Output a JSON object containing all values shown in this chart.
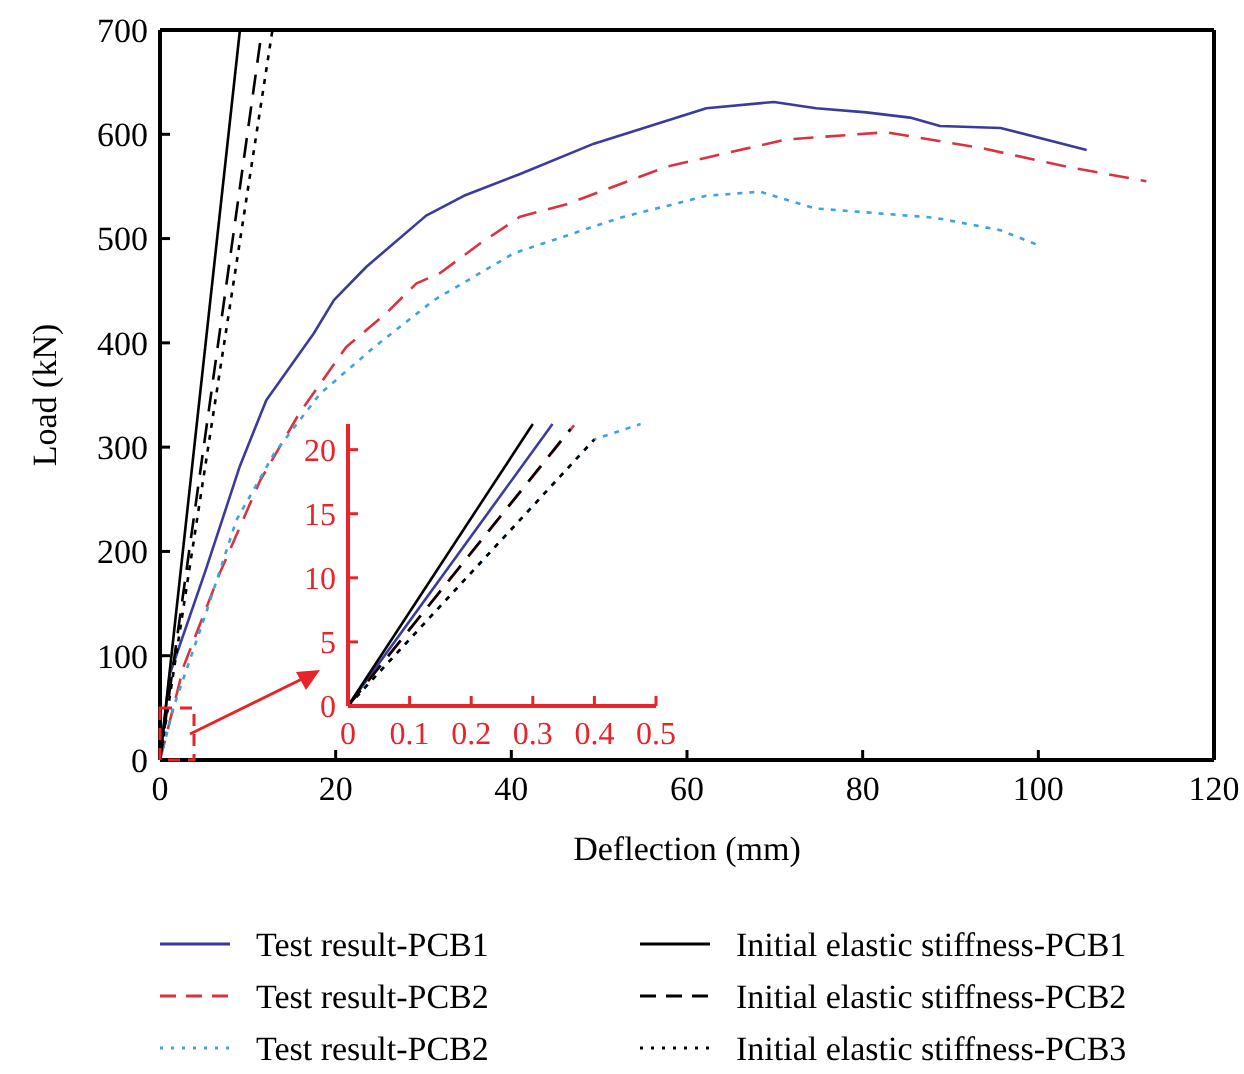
{
  "chart_data": [
    {
      "type": "line",
      "xlabel": "Deflection (mm)",
      "ylabel": "Load (kN)",
      "xlim": [
        0,
        120
      ],
      "ylim": [
        0,
        700
      ],
      "xticks": [
        0,
        20,
        40,
        60,
        80,
        100,
        120
      ],
      "yticks": [
        0,
        100,
        200,
        300,
        400,
        500,
        600,
        700
      ],
      "grid": false,
      "legend": "bottom",
      "series": [
        {
          "name": "Test result-PCB1",
          "color": "#3b3b9e",
          "line_style": "solid",
          "x": [
            0,
            1.1,
            5.2,
            9.1,
            12.1,
            17.5,
            19.8,
            23.5,
            30.3,
            34.6,
            41,
            49.4,
            62.2,
            69.9,
            74.7,
            80.4,
            85.4,
            88.8,
            95.7,
            105.5
          ],
          "values": [
            0,
            82,
            182,
            282,
            345,
            409,
            441,
            473,
            522,
            541,
            562,
            591,
            625,
            631,
            625,
            621,
            616,
            608,
            606,
            585
          ]
        },
        {
          "name": "Test result-PCB2",
          "color": "#d9333f",
          "line_style": "dashed",
          "x": [
            0,
            2.7,
            6.8,
            11.4,
            15.9,
            21.2,
            25.7,
            29.2,
            31.9,
            36.4,
            41,
            46.3,
            57.7,
            71.3,
            82.7,
            93.4,
            103.2,
            112.3
          ],
          "values": [
            0,
            90,
            179,
            268,
            333,
            396,
            428,
            457,
            467,
            495,
            521,
            533,
            569,
            595,
            602,
            587,
            569,
            555
          ]
        },
        {
          "name": "Test result-PCB2",
          "color": "#3fa3dc",
          "line_style": "dotted",
          "x": [
            0,
            1.6,
            5.2,
            8.7,
            13,
            18.2,
            24.4,
            31.2,
            40.3,
            52.4,
            62.2,
            68.3,
            74.5,
            88.2,
            95.7,
            100.2
          ],
          "values": [
            0,
            52,
            140,
            230,
            294,
            351,
            396,
            441,
            486,
            520,
            541,
            545,
            529,
            520,
            508,
            493
          ]
        },
        {
          "name": "Initial elastic stiffness-PCB1",
          "color": "#000000",
          "line_style": "solid",
          "x": [
            0,
            9.1
          ],
          "values": [
            0,
            700
          ]
        },
        {
          "name": "Initial elastic stiffness-PCB2",
          "color": "#000000",
          "line_style": "dashed",
          "x": [
            0,
            11.6
          ],
          "values": [
            0,
            700
          ]
        },
        {
          "name": "Initial elastic stiffness-PCB3",
          "color": "#000000",
          "line_style": "dotted",
          "x": [
            0,
            12.8
          ],
          "values": [
            0,
            700
          ]
        }
      ]
    },
    {
      "type": "line",
      "xlim": [
        0,
        0.5
      ],
      "ylim": [
        0,
        22
      ],
      "xticks": [
        0,
        0.1,
        0.2,
        0.3,
        0.4,
        0.5
      ],
      "yticks": [
        0,
        5,
        10,
        15,
        20
      ],
      "grid": false,
      "series": [
        {
          "color": "#3b3b9e",
          "line_style": "solid",
          "x": [
            0,
            0.332
          ],
          "values": [
            0,
            22
          ]
        },
        {
          "color": "#d9333f",
          "line_style": "dashed",
          "x": [
            0,
            0.367
          ],
          "values": [
            0,
            21.9
          ]
        },
        {
          "color": "#3fa3dc",
          "line_style": "dotted",
          "x": [
            0,
            0.4,
            0.475
          ],
          "values": [
            0,
            20.8,
            22
          ]
        },
        {
          "color": "#000000",
          "line_style": "solid",
          "x": [
            0,
            0.3
          ],
          "values": [
            0,
            22
          ]
        },
        {
          "color": "#000000",
          "line_style": "dashed",
          "x": [
            0,
            0.361
          ],
          "values": [
            0,
            21.6
          ]
        },
        {
          "color": "#000000",
          "line_style": "dotted",
          "x": [
            0,
            0.4
          ],
          "values": [
            0,
            20.8
          ]
        }
      ]
    }
  ]
}
